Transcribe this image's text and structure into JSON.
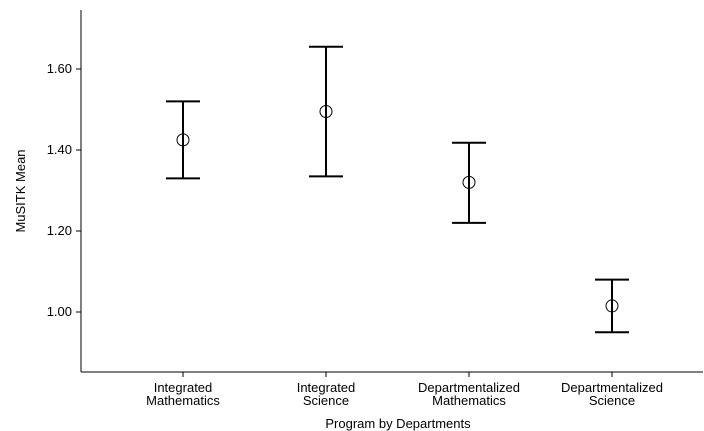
{
  "chart_data": {
    "type": "errorbar",
    "xlabel": "Program by Departments",
    "ylabel": "MuSITK Mean",
    "ylim": [
      0.85,
      1.75
    ],
    "yticks": [
      "1.00",
      "1.20",
      "1.40",
      "1.60"
    ],
    "ytick_values": [
      1.0,
      1.2,
      1.4,
      1.6
    ],
    "grid": false,
    "categories": [
      [
        "Integrated",
        "Mathematics"
      ],
      [
        "Integrated",
        "Science"
      ],
      [
        "Departmentalized",
        "Mathematics"
      ],
      [
        "Departmentalized",
        "Science"
      ]
    ],
    "means": [
      1.425,
      1.495,
      1.32,
      1.015
    ],
    "lower": [
      1.33,
      1.335,
      1.22,
      0.95
    ],
    "upper": [
      1.52,
      1.655,
      1.418,
      1.08
    ]
  }
}
